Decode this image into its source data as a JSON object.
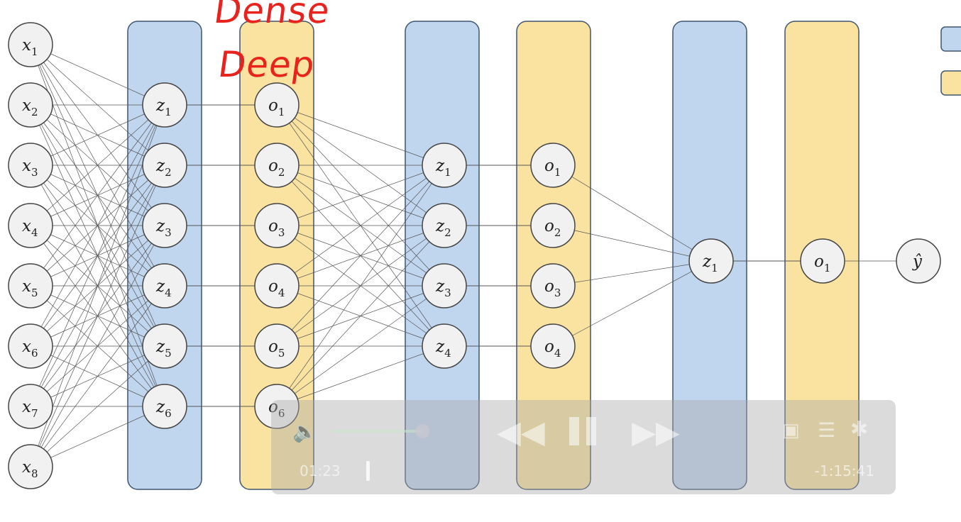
{
  "annotation": {
    "line1": "Dense",
    "line2": "Deep"
  },
  "layers": [
    {
      "kind": "input",
      "nodes": [
        {
          "sym": "x",
          "sub": "1"
        },
        {
          "sym": "x",
          "sub": "2"
        },
        {
          "sym": "x",
          "sub": "3"
        },
        {
          "sym": "x",
          "sub": "4"
        },
        {
          "sym": "x",
          "sub": "5"
        },
        {
          "sym": "x",
          "sub": "6"
        },
        {
          "sym": "x",
          "sub": "7"
        },
        {
          "sym": "x",
          "sub": "8"
        }
      ]
    },
    {
      "kind": "z",
      "color": "#c0d5ee",
      "nodes": [
        {
          "sym": "z",
          "sub": "1"
        },
        {
          "sym": "z",
          "sub": "2"
        },
        {
          "sym": "z",
          "sub": "3"
        },
        {
          "sym": "z",
          "sub": "4"
        },
        {
          "sym": "z",
          "sub": "5"
        },
        {
          "sym": "z",
          "sub": "6"
        }
      ]
    },
    {
      "kind": "o",
      "color": "#fae3a0",
      "nodes": [
        {
          "sym": "o",
          "sub": "1"
        },
        {
          "sym": "o",
          "sub": "2"
        },
        {
          "sym": "o",
          "sub": "3"
        },
        {
          "sym": "o",
          "sub": "4"
        },
        {
          "sym": "o",
          "sub": "5"
        },
        {
          "sym": "o",
          "sub": "6"
        }
      ]
    },
    {
      "kind": "z",
      "color": "#c0d5ee",
      "nodes": [
        {
          "sym": "z",
          "sub": "1"
        },
        {
          "sym": "z",
          "sub": "2"
        },
        {
          "sym": "z",
          "sub": "3"
        },
        {
          "sym": "z",
          "sub": "4"
        }
      ]
    },
    {
      "kind": "o",
      "color": "#fae3a0",
      "nodes": [
        {
          "sym": "o",
          "sub": "1"
        },
        {
          "sym": "o",
          "sub": "2"
        },
        {
          "sym": "o",
          "sub": "3"
        },
        {
          "sym": "o",
          "sub": "4"
        }
      ]
    },
    {
      "kind": "z",
      "color": "#c0d5ee",
      "nodes": [
        {
          "sym": "z",
          "sub": "1"
        }
      ]
    },
    {
      "kind": "o",
      "color": "#fae3a0",
      "nodes": [
        {
          "sym": "o",
          "sub": "1"
        }
      ]
    },
    {
      "kind": "output",
      "nodes": [
        {
          "sym": "ŷ",
          "sub": ""
        }
      ]
    }
  ],
  "legend_colors": [
    "#c0d5ee",
    "#fae3a0"
  ],
  "player": {
    "elapsed": "01:23",
    "remaining": "-1:15:41",
    "volume_level": 0.9,
    "icons": [
      "volume-icon",
      "rewind-icon",
      "pause-icon",
      "fast-forward-icon",
      "picture-in-picture-icon",
      "playlist-icon",
      "settings-icon"
    ]
  }
}
